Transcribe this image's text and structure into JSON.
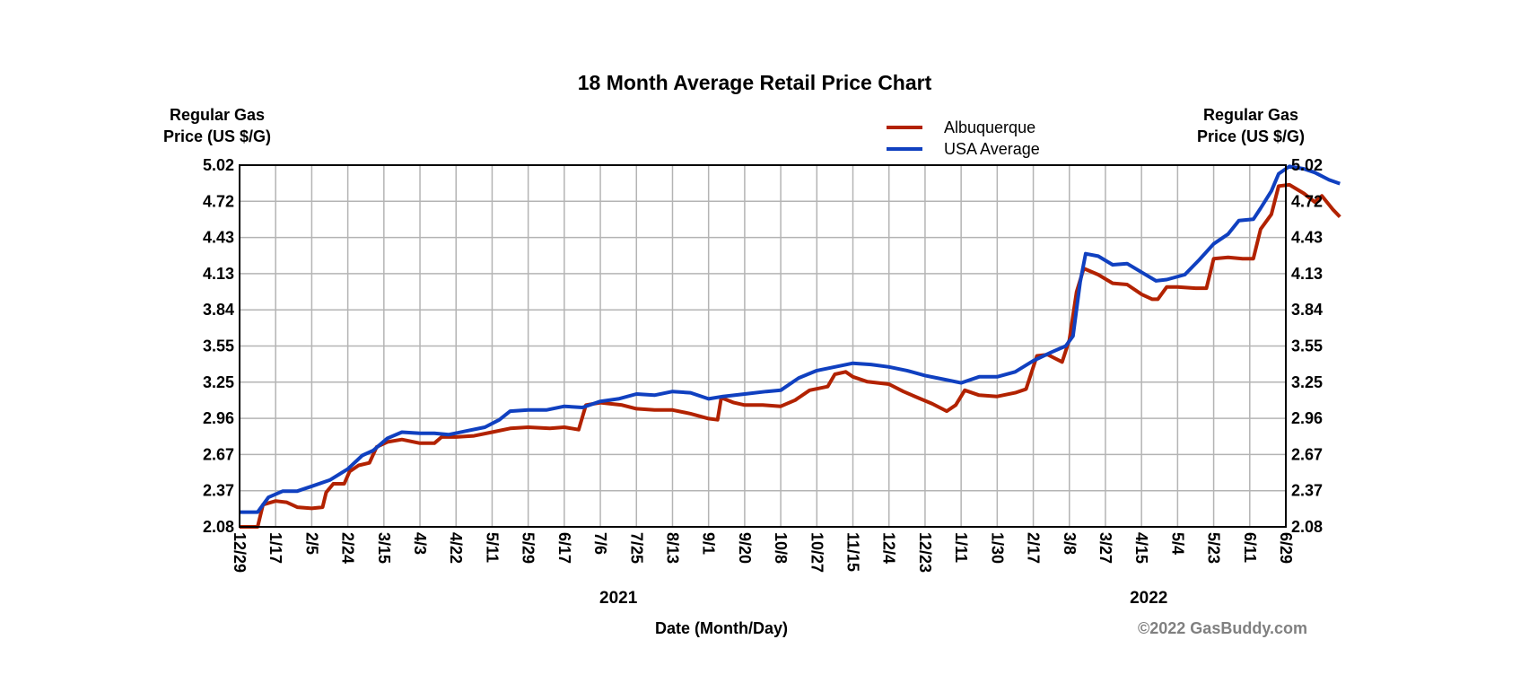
{
  "chart_data": {
    "type": "line",
    "title": "18 Month Average Retail Price Chart",
    "ylabel_left": [
      "Regular Gas",
      "Price (US $/G)"
    ],
    "ylabel_right": [
      "Regular Gas",
      "Price (US $/G)"
    ],
    "xlabel": "Date (Month/Day)",
    "copyright": "©2022 GasBuddy.com",
    "ylim": [
      2.08,
      5.02
    ],
    "y_ticks": [
      "2.08",
      "2.37",
      "2.67",
      "2.96",
      "3.25",
      "3.55",
      "3.84",
      "4.13",
      "4.43",
      "4.72",
      "5.02"
    ],
    "x_ticks": [
      "12/29",
      "1/17",
      "2/5",
      "2/24",
      "3/15",
      "4/3",
      "4/22",
      "5/11",
      "5/29",
      "6/17",
      "7/6",
      "7/25",
      "8/13",
      "9/1",
      "9/20",
      "10/8",
      "10/27",
      "11/15",
      "12/4",
      "12/23",
      "1/11",
      "1/30",
      "2/17",
      "3/8",
      "3/27",
      "4/15",
      "5/4",
      "5/23",
      "6/11",
      "6/29"
    ],
    "year_labels": [
      {
        "text": "2021",
        "tick_index": 10.5
      },
      {
        "text": "2022",
        "tick_index": 25.2
      }
    ],
    "grid": true,
    "legend_position": "top-right",
    "colors": {
      "Albuquerque": "#b22200",
      "USA Average": "#1040c0"
    },
    "series": [
      {
        "name": "Albuquerque",
        "points": [
          [
            0,
            2.08
          ],
          [
            0.5,
            2.08
          ],
          [
            0.65,
            2.26
          ],
          [
            1,
            2.29
          ],
          [
            1.3,
            2.28
          ],
          [
            1.6,
            2.24
          ],
          [
            2,
            2.23
          ],
          [
            2.3,
            2.24
          ],
          [
            2.4,
            2.36
          ],
          [
            2.6,
            2.43
          ],
          [
            2.9,
            2.43
          ],
          [
            3.05,
            2.53
          ],
          [
            3.3,
            2.58
          ],
          [
            3.6,
            2.6
          ],
          [
            3.8,
            2.73
          ],
          [
            4.1,
            2.77
          ],
          [
            4.5,
            2.79
          ],
          [
            5,
            2.76
          ],
          [
            5.4,
            2.76
          ],
          [
            5.6,
            2.81
          ],
          [
            6,
            2.81
          ],
          [
            6.5,
            2.82
          ],
          [
            7,
            2.85
          ],
          [
            7.5,
            2.88
          ],
          [
            8,
            2.89
          ],
          [
            8.6,
            2.88
          ],
          [
            9,
            2.89
          ],
          [
            9.4,
            2.87
          ],
          [
            9.6,
            3.07
          ],
          [
            10,
            3.09
          ],
          [
            10.6,
            3.07
          ],
          [
            11,
            3.04
          ],
          [
            11.5,
            3.03
          ],
          [
            12,
            3.03
          ],
          [
            12.5,
            3.0
          ],
          [
            13,
            2.96
          ],
          [
            13.25,
            2.95
          ],
          [
            13.35,
            3.13
          ],
          [
            13.7,
            3.09
          ],
          [
            14,
            3.07
          ],
          [
            14.5,
            3.07
          ],
          [
            15,
            3.06
          ],
          [
            15.4,
            3.11
          ],
          [
            15.8,
            3.19
          ],
          [
            16.3,
            3.22
          ],
          [
            16.5,
            3.32
          ],
          [
            16.8,
            3.34
          ],
          [
            17,
            3.3
          ],
          [
            17.4,
            3.26
          ],
          [
            18,
            3.24
          ],
          [
            18.4,
            3.18
          ],
          [
            18.8,
            3.13
          ],
          [
            19.2,
            3.08
          ],
          [
            19.6,
            3.02
          ],
          [
            19.85,
            3.07
          ],
          [
            20.1,
            3.19
          ],
          [
            20.5,
            3.15
          ],
          [
            21,
            3.14
          ],
          [
            21.5,
            3.17
          ],
          [
            21.8,
            3.2
          ],
          [
            22.1,
            3.47
          ],
          [
            22.4,
            3.48
          ],
          [
            22.8,
            3.42
          ],
          [
            23.0,
            3.6
          ],
          [
            23.2,
            3.99
          ],
          [
            23.4,
            4.18
          ],
          [
            23.8,
            4.13
          ],
          [
            24.2,
            4.06
          ],
          [
            24.6,
            4.05
          ],
          [
            25,
            3.97
          ],
          [
            25.3,
            3.93
          ],
          [
            25.45,
            3.93
          ],
          [
            25.7,
            4.03
          ],
          [
            26,
            4.03
          ],
          [
            26.5,
            4.02
          ],
          [
            26.8,
            4.02
          ],
          [
            27,
            4.26
          ],
          [
            27.4,
            4.27
          ],
          [
            27.8,
            4.26
          ],
          [
            28.1,
            4.26
          ],
          [
            28.3,
            4.5
          ],
          [
            28.6,
            4.62
          ],
          [
            28.8,
            4.85
          ],
          [
            29.1,
            4.86
          ],
          [
            29.5,
            4.79
          ],
          [
            29.8,
            4.72
          ],
          [
            30,
            4.77
          ],
          [
            30.3,
            4.66
          ],
          [
            30.5,
            4.6
          ]
        ]
      },
      {
        "name": "USA Average",
        "points": [
          [
            0,
            2.2
          ],
          [
            0.5,
            2.2
          ],
          [
            0.8,
            2.32
          ],
          [
            1.2,
            2.37
          ],
          [
            1.6,
            2.37
          ],
          [
            2,
            2.41
          ],
          [
            2.5,
            2.46
          ],
          [
            3,
            2.55
          ],
          [
            3.4,
            2.66
          ],
          [
            3.7,
            2.7
          ],
          [
            4.1,
            2.8
          ],
          [
            4.5,
            2.85
          ],
          [
            5,
            2.84
          ],
          [
            5.4,
            2.84
          ],
          [
            5.8,
            2.83
          ],
          [
            6.3,
            2.86
          ],
          [
            6.8,
            2.89
          ],
          [
            7.2,
            2.95
          ],
          [
            7.5,
            3.02
          ],
          [
            8,
            3.03
          ],
          [
            8.5,
            3.03
          ],
          [
            9,
            3.06
          ],
          [
            9.5,
            3.05
          ],
          [
            10,
            3.1
          ],
          [
            10.5,
            3.12
          ],
          [
            11,
            3.16
          ],
          [
            11.5,
            3.15
          ],
          [
            12,
            3.18
          ],
          [
            12.5,
            3.17
          ],
          [
            13,
            3.12
          ],
          [
            13.4,
            3.14
          ],
          [
            14,
            3.16
          ],
          [
            14.6,
            3.18
          ],
          [
            15,
            3.19
          ],
          [
            15.5,
            3.29
          ],
          [
            16,
            3.35
          ],
          [
            16.5,
            3.38
          ],
          [
            17,
            3.41
          ],
          [
            17.5,
            3.4
          ],
          [
            18,
            3.38
          ],
          [
            18.5,
            3.35
          ],
          [
            19,
            3.31
          ],
          [
            19.5,
            3.28
          ],
          [
            20,
            3.25
          ],
          [
            20.5,
            3.3
          ],
          [
            21,
            3.3
          ],
          [
            21.5,
            3.34
          ],
          [
            22,
            3.43
          ],
          [
            22.5,
            3.5
          ],
          [
            22.9,
            3.55
          ],
          [
            23.1,
            3.63
          ],
          [
            23.3,
            4.07
          ],
          [
            23.45,
            4.3
          ],
          [
            23.8,
            4.28
          ],
          [
            24.2,
            4.21
          ],
          [
            24.6,
            4.22
          ],
          [
            25,
            4.15
          ],
          [
            25.4,
            4.08
          ],
          [
            25.7,
            4.09
          ],
          [
            26.2,
            4.13
          ],
          [
            26.6,
            4.25
          ],
          [
            27,
            4.38
          ],
          [
            27.4,
            4.46
          ],
          [
            27.7,
            4.57
          ],
          [
            28.1,
            4.58
          ],
          [
            28.3,
            4.67
          ],
          [
            28.6,
            4.81
          ],
          [
            28.8,
            4.95
          ],
          [
            29.1,
            5.01
          ],
          [
            29.5,
            4.99
          ],
          [
            29.8,
            4.96
          ],
          [
            30.2,
            4.9
          ],
          [
            30.5,
            4.87
          ]
        ]
      }
    ]
  }
}
